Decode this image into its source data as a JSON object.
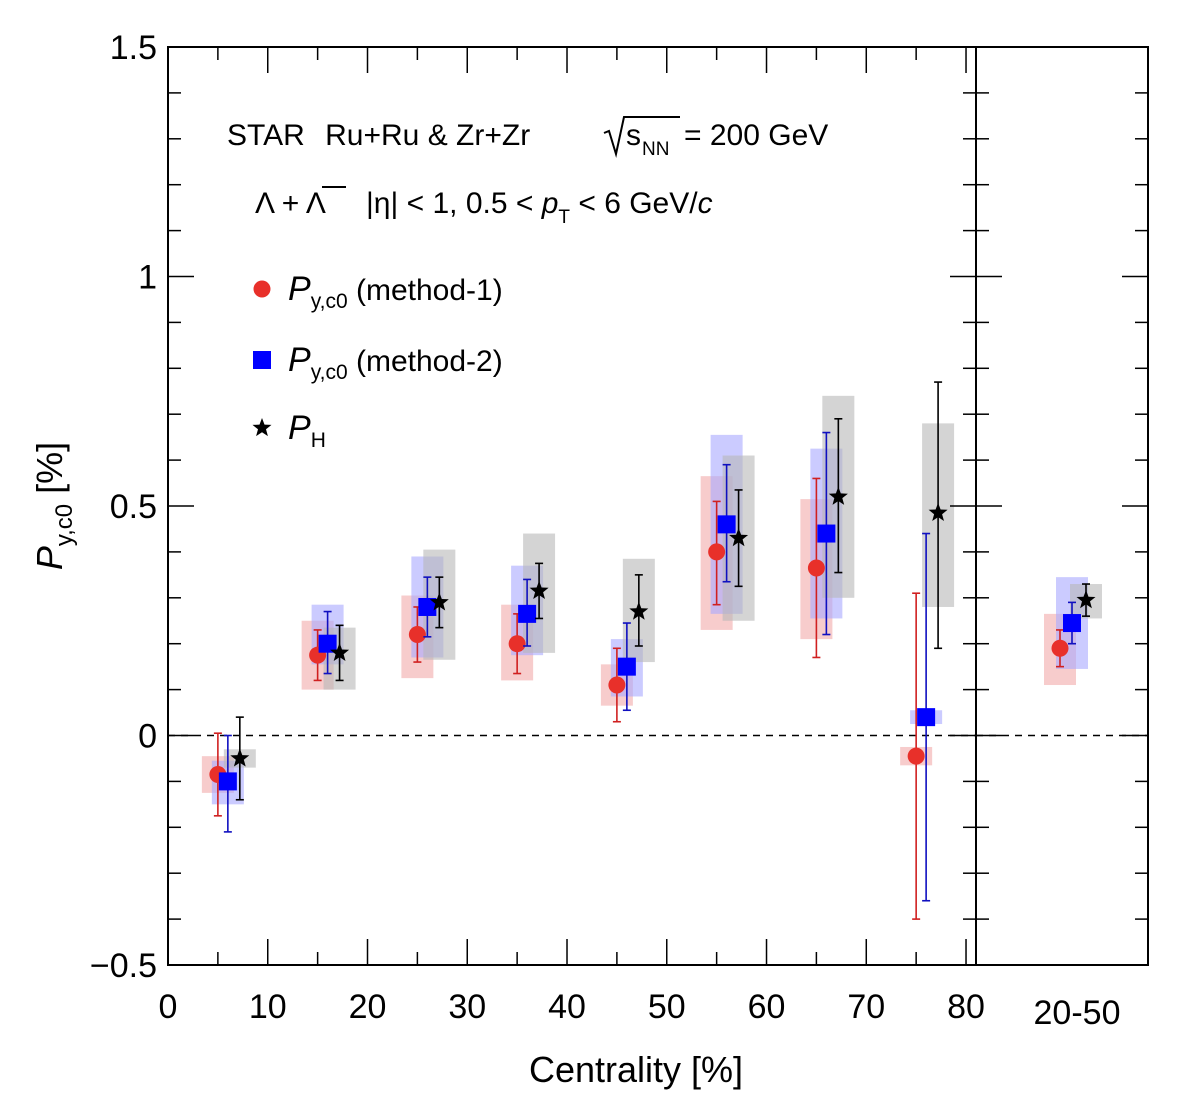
{
  "chart_data": {
    "type": "scatter",
    "header": {
      "experiment": "STAR",
      "system": "Ru+Ru & Zr+Zr",
      "energy_sqrt": "s",
      "energy_sub": "NN",
      "energy_value": "= 200 GeV",
      "particle": "Λ + Λ",
      "cuts_eta": "|η| < 1, 0.5 < ",
      "cuts_pt_sym": "p",
      "cuts_pt_sub": "T",
      "cuts_pt_range": " < 6 GeV/",
      "cuts_pt_unit": "c"
    },
    "xlabel": "Centrality [%]",
    "ylabel_main": "P",
    "ylabel_sub": "y,c0",
    "ylabel_unit": " [%]",
    "ylim": [
      -0.5,
      1.5
    ],
    "xlim": [
      0,
      81
    ],
    "x_ticks": [
      "0",
      "10",
      "20",
      "30",
      "40",
      "50",
      "60",
      "70",
      "80"
    ],
    "y_ticks": [
      "−0.5",
      "0",
      "0.5",
      "1",
      "1.5"
    ],
    "side_panel_label": "20-50",
    "reference_line": 0,
    "legend": [
      {
        "marker": "circle",
        "color": "#e8302a",
        "label_main": "P",
        "label_sub": "y,c0",
        "label_tail": " (method-1)"
      },
      {
        "marker": "square",
        "color": "#0000ff",
        "label_main": "P",
        "label_sub": "y,c0",
        "label_tail": " (method-2)"
      },
      {
        "marker": "star",
        "color": "#000000",
        "label_main": "P",
        "label_sub": "H",
        "label_tail": ""
      }
    ],
    "series": [
      {
        "name": "Py,c0 (method-1)",
        "marker": "circle",
        "color": "#e8302a",
        "err_color": "#d02020",
        "sys_color": "#f2aaaa",
        "x": [
          5,
          15,
          25,
          35,
          45,
          55,
          65,
          75
        ],
        "y": [
          -0.085,
          0.175,
          0.22,
          0.2,
          0.11,
          0.4,
          0.365,
          -0.045
        ],
        "stat_lo": [
          -0.175,
          0.12,
          0.16,
          0.135,
          0.03,
          0.285,
          0.17,
          -0.4
        ],
        "stat_hi": [
          0.005,
          0.23,
          0.28,
          0.265,
          0.19,
          0.51,
          0.56,
          0.31
        ],
        "sys_lo": [
          -0.125,
          0.1,
          0.125,
          0.12,
          0.065,
          0.23,
          0.21,
          -0.065
        ],
        "sys_hi": [
          -0.045,
          0.25,
          0.305,
          0.285,
          0.155,
          0.565,
          0.515,
          -0.025
        ],
        "side": {
          "y": 0.19,
          "stat_lo": 0.15,
          "stat_hi": 0.23,
          "sys_lo": 0.11,
          "sys_hi": 0.265
        }
      },
      {
        "name": "Py,c0 (method-2)",
        "marker": "square",
        "color": "#0000ff",
        "err_color": "#1010c0",
        "sys_color": "#a8a8ff",
        "x": [
          6,
          16,
          26,
          36,
          46,
          56,
          66,
          76
        ],
        "y": [
          -0.1,
          0.2,
          0.28,
          0.265,
          0.15,
          0.46,
          0.44,
          0.04
        ],
        "stat_lo": [
          -0.21,
          0.135,
          0.215,
          0.195,
          0.055,
          0.335,
          0.22,
          -0.36
        ],
        "stat_hi": [
          0.0,
          0.27,
          0.345,
          0.34,
          0.245,
          0.59,
          0.66,
          0.44
        ],
        "sys_lo": [
          -0.15,
          0.155,
          0.17,
          0.175,
          0.085,
          0.265,
          0.255,
          0.025
        ],
        "sys_hi": [
          -0.055,
          0.285,
          0.39,
          0.37,
          0.21,
          0.655,
          0.625,
          0.055
        ],
        "side": {
          "y": 0.245,
          "stat_lo": 0.2,
          "stat_hi": 0.29,
          "sys_lo": 0.145,
          "sys_hi": 0.345
        }
      },
      {
        "name": "PH",
        "marker": "star",
        "color": "#000000",
        "err_color": "#000000",
        "sys_color": "#b8b8b8",
        "x": [
          7.2,
          17.2,
          27.2,
          37.2,
          47.2,
          57.2,
          67.2,
          77.2
        ],
        "y": [
          -0.05,
          0.18,
          0.29,
          0.315,
          0.27,
          0.43,
          0.52,
          0.485
        ],
        "stat_lo": [
          -0.14,
          0.12,
          0.235,
          0.255,
          0.195,
          0.325,
          0.355,
          0.19
        ],
        "stat_hi": [
          0.04,
          0.24,
          0.345,
          0.375,
          0.35,
          0.535,
          0.69,
          0.77
        ],
        "sys_lo": [
          -0.07,
          0.1,
          0.165,
          0.18,
          0.16,
          0.25,
          0.3,
          0.28
        ],
        "sys_hi": [
          -0.03,
          0.235,
          0.405,
          0.44,
          0.385,
          0.61,
          0.74,
          0.68
        ],
        "side": {
          "y": 0.295,
          "stat_lo": 0.26,
          "stat_hi": 0.33,
          "sys_lo": 0.255,
          "sys_hi": 0.33
        }
      }
    ]
  }
}
